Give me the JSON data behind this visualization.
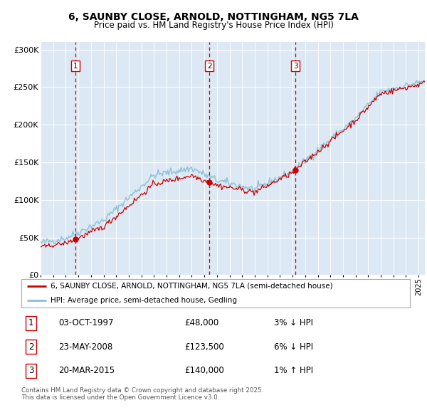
{
  "title1": "6, SAUNBY CLOSE, ARNOLD, NOTTINGHAM, NG5 7LA",
  "title2": "Price paid vs. HM Land Registry's House Price Index (HPI)",
  "legend_red": "6, SAUNBY CLOSE, ARNOLD, NOTTINGHAM, NG5 7LA (semi-detached house)",
  "legend_blue": "HPI: Average price, semi-detached house, Gedling",
  "transactions": [
    {
      "num": 1,
      "date": "03-OCT-1997",
      "price": 48000,
      "pct": "3%",
      "dir": "↓"
    },
    {
      "num": 2,
      "date": "23-MAY-2008",
      "price": 123500,
      "pct": "6%",
      "dir": "↓"
    },
    {
      "num": 3,
      "date": "20-MAR-2015",
      "price": 140000,
      "pct": "1%",
      "dir": "↑"
    }
  ],
  "transaction_dates": [
    1997.75,
    2008.39,
    2015.22
  ],
  "transaction_prices": [
    48000,
    123500,
    140000
  ],
  "footnote": "Contains HM Land Registry data © Crown copyright and database right 2025.\nThis data is licensed under the Open Government Licence v3.0.",
  "bg_color": "#dce9f5",
  "grid_color": "#ffffff",
  "red_line_color": "#cc0000",
  "blue_line_color": "#8bbfd4",
  "dashed_line_color": "#cc0000",
  "ylim": [
    0,
    310000
  ],
  "xlim": [
    1995.0,
    2025.5
  ],
  "yticks": [
    0,
    50000,
    100000,
    150000,
    200000,
    250000,
    300000
  ]
}
